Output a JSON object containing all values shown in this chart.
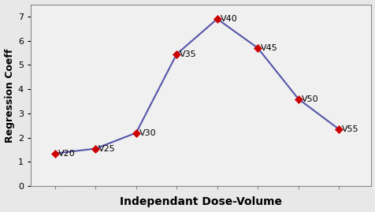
{
  "x_labels": [
    "V20",
    "V25",
    "V30",
    "V35",
    "V40",
    "V45",
    "V50",
    "V55"
  ],
  "x_values": [
    1,
    2,
    3,
    4,
    5,
    6,
    7,
    8
  ],
  "y_values": [
    1.35,
    1.55,
    2.2,
    5.45,
    6.9,
    5.7,
    3.6,
    2.35
  ],
  "line_color": "#5555aa",
  "marker_color": "#cc0000",
  "marker_style": "D",
  "marker_size": 5,
  "xlabel": "Independant Dose-Volume",
  "ylabel": "Regression Coeff",
  "ylim": [
    0,
    7.5
  ],
  "yticks": [
    0,
    1,
    2,
    3,
    4,
    5,
    6,
    7
  ],
  "background_color": "#e8e8e8",
  "plot_bg_color": "#f0f0f0",
  "label_fontsize": 8,
  "xlabel_fontsize": 10,
  "ylabel_fontsize": 9,
  "tick_fontsize": 8
}
